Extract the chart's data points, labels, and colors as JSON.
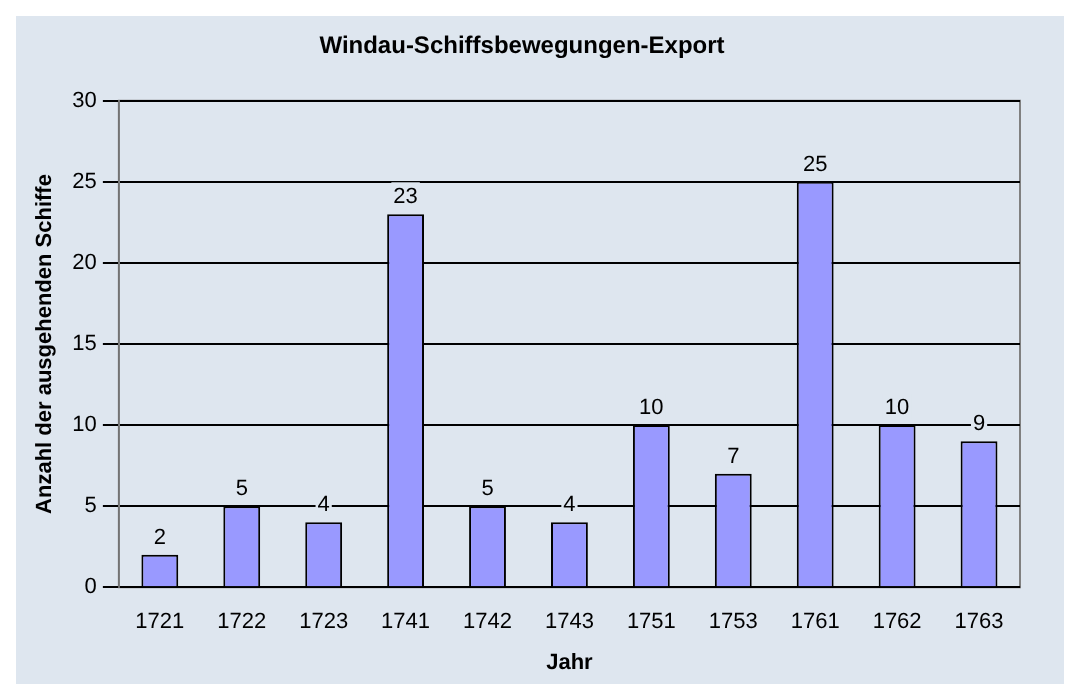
{
  "chart_data": {
    "type": "bar",
    "title": "Windau-Schiffsbewegungen-Export",
    "xlabel": "Jahr",
    "ylabel": "Anzahl der ausgehenden Schiffe",
    "categories": [
      "1721",
      "1722",
      "1723",
      "1741",
      "1742",
      "1743",
      "1751",
      "1753",
      "1761",
      "1762",
      "1763"
    ],
    "values": [
      2,
      5,
      4,
      23,
      5,
      4,
      10,
      7,
      25,
      10,
      9
    ],
    "color": "#9999ff",
    "ylim": [
      0,
      30
    ],
    "yticks": [
      0,
      5,
      10,
      15,
      20,
      25,
      30
    ],
    "grid": "y",
    "data_labels": true,
    "legend": false
  }
}
